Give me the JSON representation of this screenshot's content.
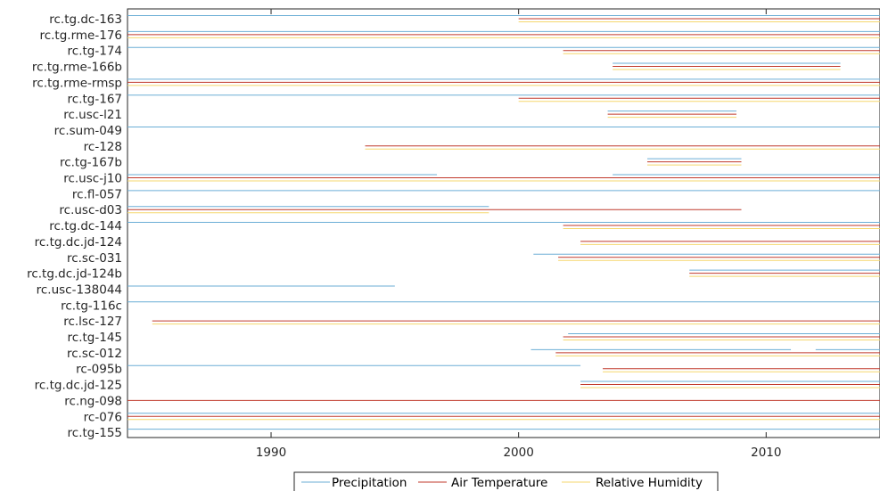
{
  "chart_data": {
    "type": "timeline",
    "xlim": [
      1984.2,
      2014.6
    ],
    "x_ticks": [
      1990,
      2000,
      2010
    ],
    "grid": false,
    "legend_position": "bottom",
    "colors": {
      "Precipitation": "#6baed6",
      "Air Temperature": "#c0392b",
      "Relative Humidity": "#f5d76e"
    },
    "stations": [
      {
        "name": "rc.tg.dc-163",
        "P": [
          [
            1984.2,
            2014.6
          ]
        ],
        "T": [
          [
            2000.0,
            2014.6
          ]
        ],
        "RH": [
          [
            2000.0,
            2014.6
          ]
        ]
      },
      {
        "name": "rc.tg.rme-176",
        "P": [
          [
            1984.2,
            2014.6
          ]
        ],
        "T": [
          [
            1984.2,
            2014.6
          ]
        ],
        "RH": [
          [
            1984.2,
            2014.6
          ]
        ]
      },
      {
        "name": "rc.tg-174",
        "P": [
          [
            1984.2,
            2014.6
          ]
        ],
        "T": [
          [
            2001.8,
            2014.6
          ]
        ],
        "RH": [
          [
            2001.8,
            2014.6
          ]
        ]
      },
      {
        "name": "rc.tg.rme-166b",
        "P": [
          [
            2003.8,
            2013.0
          ]
        ],
        "T": [
          [
            2003.8,
            2013.0
          ]
        ],
        "RH": [
          [
            2003.8,
            2013.0
          ]
        ]
      },
      {
        "name": "rc.tg.rme-rmsp",
        "P": [
          [
            1984.2,
            2014.6
          ]
        ],
        "T": [
          [
            1984.2,
            2014.6
          ]
        ],
        "RH": [
          [
            1984.2,
            2014.6
          ]
        ]
      },
      {
        "name": "rc.tg-167",
        "P": [
          [
            1984.2,
            2014.6
          ]
        ],
        "T": [
          [
            2000.0,
            2014.6
          ]
        ],
        "RH": [
          [
            2000.0,
            2014.6
          ]
        ]
      },
      {
        "name": "rc.usc-l21",
        "P": [
          [
            2003.6,
            2008.8
          ]
        ],
        "T": [
          [
            2003.6,
            2008.8
          ]
        ],
        "RH": [
          [
            2003.6,
            2008.8
          ]
        ]
      },
      {
        "name": "rc.sum-049",
        "P": [
          [
            1984.2,
            2014.6
          ]
        ],
        "T": [],
        "RH": []
      },
      {
        "name": "rc-128",
        "P": [],
        "T": [
          [
            1993.8,
            2014.6
          ]
        ],
        "RH": [
          [
            1993.8,
            2014.6
          ]
        ]
      },
      {
        "name": "rc.tg-167b",
        "P": [
          [
            2005.2,
            2009.0
          ]
        ],
        "T": [
          [
            2005.2,
            2009.0
          ]
        ],
        "RH": [
          [
            2005.2,
            2009.0
          ]
        ]
      },
      {
        "name": "rc.usc-j10",
        "P": [
          [
            1984.2,
            1996.7
          ],
          [
            2003.8,
            2014.6
          ]
        ],
        "T": [
          [
            1984.2,
            2014.6
          ]
        ],
        "RH": [
          [
            1984.2,
            2014.6
          ]
        ]
      },
      {
        "name": "rc.fl-057",
        "P": [
          [
            1984.2,
            2014.6
          ]
        ],
        "T": [],
        "RH": []
      },
      {
        "name": "rc.usc-d03",
        "P": [
          [
            1984.2,
            1998.8
          ]
        ],
        "T": [
          [
            1984.2,
            2009.0
          ]
        ],
        "RH": [
          [
            1984.2,
            1998.8
          ]
        ]
      },
      {
        "name": "rc.tg.dc-144",
        "P": [
          [
            1984.2,
            2014.6
          ]
        ],
        "T": [
          [
            2001.8,
            2014.6
          ]
        ],
        "RH": [
          [
            2001.8,
            2014.6
          ]
        ]
      },
      {
        "name": "rc.tg.dc.jd-124",
        "P": [],
        "T": [
          [
            2002.5,
            2014.6
          ]
        ],
        "RH": [
          [
            2002.5,
            2014.6
          ]
        ]
      },
      {
        "name": "rc.sc-031",
        "P": [
          [
            2000.6,
            2014.6
          ]
        ],
        "T": [
          [
            2001.6,
            2014.6
          ]
        ],
        "RH": [
          [
            2001.6,
            2014.6
          ]
        ]
      },
      {
        "name": "rc.tg.dc.jd-124b",
        "P": [
          [
            2006.9,
            2014.6
          ]
        ],
        "T": [
          [
            2006.9,
            2014.6
          ]
        ],
        "RH": [
          [
            2006.9,
            2014.6
          ]
        ]
      },
      {
        "name": "rc.usc-138044",
        "P": [
          [
            1984.2,
            1995.0
          ]
        ],
        "T": [],
        "RH": []
      },
      {
        "name": "rc.tg-116c",
        "P": [
          [
            1984.2,
            2014.6
          ]
        ],
        "T": [],
        "RH": []
      },
      {
        "name": "rc.lsc-127",
        "P": [],
        "T": [
          [
            1985.2,
            2014.6
          ]
        ],
        "RH": [
          [
            1985.2,
            2014.6
          ]
        ]
      },
      {
        "name": "rc.tg-145",
        "P": [
          [
            2002.0,
            2014.6
          ]
        ],
        "T": [
          [
            2001.8,
            2014.6
          ]
        ],
        "RH": [
          [
            2001.8,
            2014.6
          ]
        ]
      },
      {
        "name": "rc.sc-012",
        "P": [
          [
            2000.5,
            2011.0
          ],
          [
            2012.0,
            2014.6
          ]
        ],
        "T": [
          [
            2001.5,
            2014.6
          ]
        ],
        "RH": [
          [
            2001.5,
            2014.6
          ]
        ]
      },
      {
        "name": "rc-095b",
        "P": [
          [
            1984.2,
            2002.5
          ]
        ],
        "T": [
          [
            2003.4,
            2014.6
          ]
        ],
        "RH": [
          [
            2003.4,
            2014.6
          ]
        ]
      },
      {
        "name": "rc.tg.dc.jd-125",
        "P": [
          [
            2002.5,
            2014.6
          ]
        ],
        "T": [
          [
            2002.5,
            2014.6
          ]
        ],
        "RH": [
          [
            2002.5,
            2014.6
          ]
        ]
      },
      {
        "name": "rc.ng-098",
        "P": [],
        "T": [
          [
            1984.2,
            2014.6
          ]
        ],
        "RH": []
      },
      {
        "name": "rc-076",
        "P": [
          [
            1984.2,
            2014.6
          ]
        ],
        "T": [
          [
            1984.2,
            2014.6
          ]
        ],
        "RH": [
          [
            1984.2,
            2014.6
          ]
        ]
      },
      {
        "name": "rc.tg-155",
        "P": [
          [
            1984.2,
            2014.6
          ]
        ],
        "T": [],
        "RH": []
      }
    ],
    "legend": [
      "Precipitation",
      "Air Temperature",
      "Relative Humidity"
    ]
  }
}
